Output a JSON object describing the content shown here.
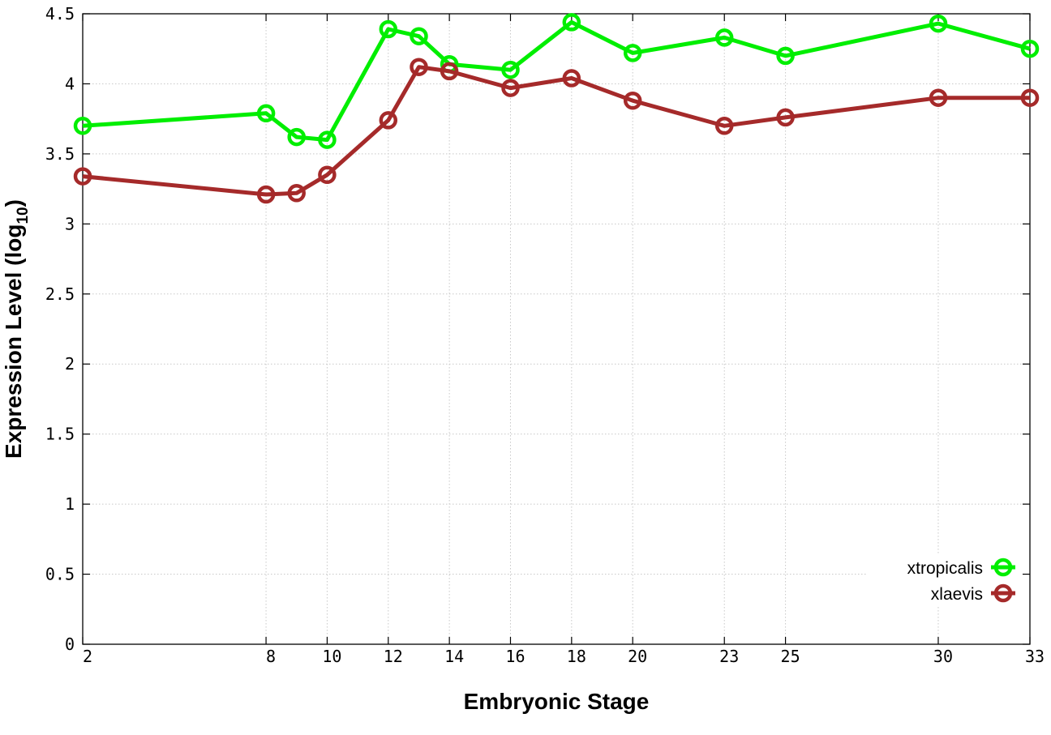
{
  "chart_data": {
    "type": "line",
    "title": "",
    "xlabel": "Embryonic Stage",
    "ylabel_main": "Expression Level (log",
    "ylabel_sub": "10",
    "ylabel_close": ")",
    "x": [
      2,
      8,
      9,
      10,
      12,
      13,
      14,
      16,
      18,
      20,
      23,
      25,
      30,
      33
    ],
    "x_ticks": [
      2,
      8,
      10,
      12,
      14,
      16,
      18,
      20,
      23,
      25,
      30,
      33
    ],
    "x_tick_labels": [
      "2",
      "8",
      "10",
      "12",
      "14",
      "16",
      "18",
      "20",
      "23",
      "25",
      "30",
      "33"
    ],
    "xlim": [
      2,
      33
    ],
    "y_ticks": [
      0,
      0.5,
      1,
      1.5,
      2,
      2.5,
      3,
      3.5,
      4,
      4.5
    ],
    "y_tick_labels": [
      "0",
      "0.5",
      "1",
      "1.5",
      "2",
      "2.5",
      "3",
      "3.5",
      "4",
      "4.5"
    ],
    "ylim": [
      0,
      4.5
    ],
    "grid": true,
    "legend_position": "bottom-right",
    "series": [
      {
        "name": "xtropicalis",
        "color": "#00ee00",
        "values": [
          3.7,
          3.79,
          3.62,
          3.6,
          4.39,
          4.34,
          4.14,
          4.1,
          4.44,
          4.22,
          4.33,
          4.2,
          4.43,
          4.25
        ]
      },
      {
        "name": "xlaevis",
        "color": "#a52a2a",
        "values": [
          3.34,
          3.21,
          3.22,
          3.35,
          3.74,
          4.12,
          4.09,
          3.97,
          4.04,
          3.88,
          3.7,
          3.76,
          3.9,
          3.9
        ]
      }
    ]
  }
}
